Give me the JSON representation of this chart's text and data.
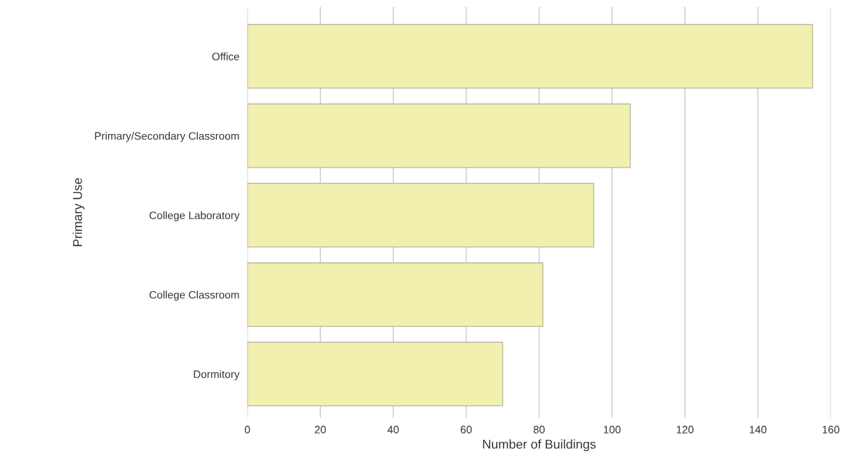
{
  "chart_data": {
    "type": "bar",
    "orientation": "horizontal",
    "xlabel": "Number of Buildings",
    "ylabel": "Primary Use",
    "categories": [
      "Office",
      "Primary/Secondary Classroom",
      "College Laboratory",
      "College Classroom",
      "Dormitory"
    ],
    "values": [
      155,
      105,
      95,
      81,
      70
    ],
    "color": "#f2f0ae",
    "xlim": [
      0,
      160
    ],
    "xticks": [
      0,
      20,
      40,
      60,
      80,
      100,
      120,
      140,
      160
    ],
    "grid": "x"
  }
}
